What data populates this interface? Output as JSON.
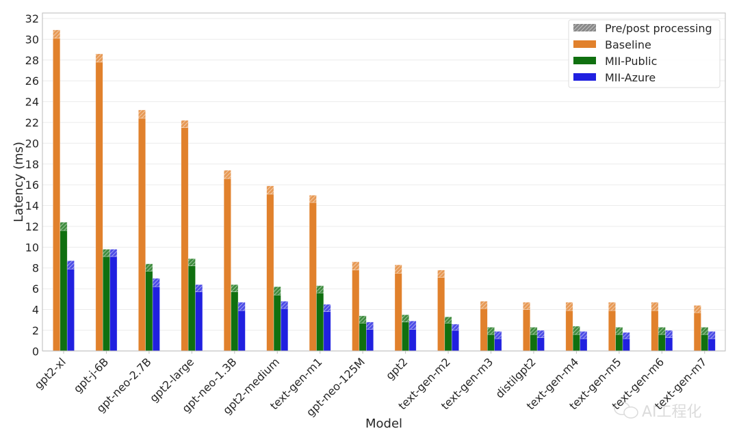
{
  "chart_data": {
    "type": "bar",
    "stacked_overlay": "hatched top segment = pre/post processing",
    "xlabel": "Model",
    "ylabel": "Latency (ms)",
    "ylim": [
      0,
      32
    ],
    "yticks": [
      0,
      2,
      4,
      6,
      8,
      10,
      12,
      14,
      16,
      18,
      20,
      22,
      24,
      26,
      28,
      30,
      32
    ],
    "grid": true,
    "legend_position": "top-right",
    "legend": [
      "Pre/post processing",
      "Baseline",
      "MII-Public",
      "MII-Azure"
    ],
    "categories": [
      "gpt2-xl",
      "gpt-j-6B",
      "gpt-neo-2.7B",
      "gpt2-large",
      "gpt-neo-1.3B",
      "gpt2-medium",
      "text-gen-m1",
      "gpt-neo-125M",
      "gpt2",
      "text-gen-m2",
      "text-gen-m3",
      "distilgpt2",
      "text-gen-m4",
      "text-gen-m5",
      "text-gen-m6",
      "text-gen-m7"
    ],
    "series": [
      {
        "name": "Baseline",
        "color": "#e1812c",
        "compute": [
          30.1,
          27.8,
          22.4,
          21.5,
          16.6,
          15.1,
          14.3,
          7.8,
          7.5,
          7.1,
          4.1,
          4.0,
          3.9,
          3.9,
          3.9,
          3.7
        ],
        "total": [
          30.9,
          28.6,
          23.2,
          22.2,
          17.4,
          15.9,
          15.0,
          8.6,
          8.3,
          7.8,
          4.8,
          4.7,
          4.7,
          4.7,
          4.7,
          4.4
        ]
      },
      {
        "name": "MII-Public",
        "color": "#107010",
        "compute": [
          11.6,
          9.1,
          7.7,
          8.2,
          5.7,
          5.4,
          5.6,
          2.7,
          2.8,
          2.7,
          1.6,
          1.6,
          1.6,
          1.6,
          1.6,
          1.6
        ],
        "total": [
          12.4,
          9.8,
          8.4,
          8.9,
          6.4,
          6.2,
          6.3,
          3.4,
          3.5,
          3.3,
          2.3,
          2.3,
          2.4,
          2.3,
          2.3,
          2.3
        ]
      },
      {
        "name": "MII-Azure",
        "color": "#2020e0",
        "compute": [
          7.9,
          9.1,
          6.2,
          5.7,
          3.9,
          4.1,
          3.8,
          2.1,
          2.1,
          2.0,
          1.2,
          1.3,
          1.2,
          1.2,
          1.3,
          1.2
        ],
        "total": [
          8.7,
          9.8,
          7.0,
          6.4,
          4.7,
          4.8,
          4.5,
          2.8,
          2.9,
          2.6,
          1.9,
          2.0,
          1.9,
          1.8,
          2.0,
          1.9
        ]
      }
    ],
    "prepost_color": "#888888"
  },
  "watermark": "AI工程化"
}
